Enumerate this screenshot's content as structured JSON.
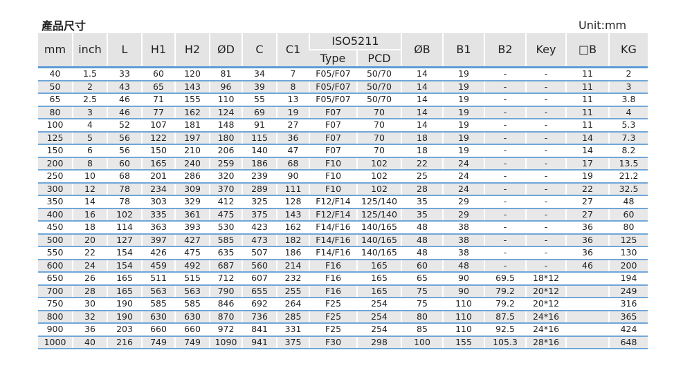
{
  "title": "產品尺寸",
  "unit": "Unit:mm",
  "colors": {
    "header_bg": "#e4e4e4",
    "row_alt_bg": "#e8e8e8",
    "row_line": "#6fa6d8"
  },
  "headers": {
    "mm": "mm",
    "inch": "inch",
    "L": "L",
    "H1": "H1",
    "H2": "H2",
    "D": "ØD",
    "C": "C",
    "C1": "C1",
    "iso": "ISO5211",
    "type": "Type",
    "pcd": "PCD",
    "B": "ØB",
    "B1": "B1",
    "B2": "B2",
    "key": "Key",
    "sqB": "□B",
    "KG": "KG"
  },
  "rows": [
    [
      "40",
      "1.5",
      "33",
      "60",
      "120",
      "81",
      "34",
      "7",
      "F05/F07",
      "50/70",
      "14",
      "19",
      "-",
      "-",
      "11",
      "2"
    ],
    [
      "50",
      "2",
      "43",
      "65",
      "143",
      "96",
      "39",
      "8",
      "F05/F07",
      "50/70",
      "14",
      "19",
      "-",
      "-",
      "11",
      "3"
    ],
    [
      "65",
      "2.5",
      "46",
      "71",
      "155",
      "110",
      "55",
      "13",
      "F05/F07",
      "50/70",
      "14",
      "19",
      "-",
      "-",
      "11",
      "3.8"
    ],
    [
      "80",
      "3",
      "46",
      "77",
      "162",
      "124",
      "69",
      "19",
      "F07",
      "70",
      "14",
      "19",
      "-",
      "-",
      "11",
      "4"
    ],
    [
      "100",
      "4",
      "52",
      "107",
      "181",
      "148",
      "91",
      "27",
      "F07",
      "70",
      "14",
      "19",
      "-",
      "-",
      "11",
      "5.3"
    ],
    [
      "125",
      "5",
      "56",
      "122",
      "197",
      "180",
      "115",
      "36",
      "F07",
      "70",
      "18",
      "19",
      "-",
      "-",
      "14",
      "7.3"
    ],
    [
      "150",
      "6",
      "56",
      "150",
      "210",
      "206",
      "140",
      "47",
      "F07",
      "70",
      "18",
      "19",
      "-",
      "-",
      "14",
      "8.2"
    ],
    [
      "200",
      "8",
      "60",
      "165",
      "240",
      "259",
      "186",
      "68",
      "F10",
      "102",
      "22",
      "24",
      "-",
      "-",
      "17",
      "13.5"
    ],
    [
      "250",
      "10",
      "68",
      "201",
      "286",
      "320",
      "239",
      "90",
      "F10",
      "102",
      "25",
      "24",
      "-",
      "-",
      "19",
      "21.2"
    ],
    [
      "300",
      "12",
      "78",
      "234",
      "309",
      "370",
      "289",
      "111",
      "F10",
      "102",
      "28",
      "24",
      "-",
      "-",
      "22",
      "32.5"
    ],
    [
      "350",
      "14",
      "78",
      "303",
      "329",
      "412",
      "325",
      "128",
      "F12/F14",
      "125/140",
      "35",
      "29",
      "-",
      "-",
      "27",
      "48"
    ],
    [
      "400",
      "16",
      "102",
      "335",
      "361",
      "475",
      "375",
      "143",
      "F12/F14",
      "125/140",
      "35",
      "29",
      "-",
      "-",
      "27",
      "60"
    ],
    [
      "450",
      "18",
      "114",
      "363",
      "393",
      "530",
      "423",
      "162",
      "F14/F16",
      "140/165",
      "48",
      "38",
      "-",
      "-",
      "36",
      "80"
    ],
    [
      "500",
      "20",
      "127",
      "397",
      "427",
      "585",
      "473",
      "182",
      "F14/F16",
      "140/165",
      "48",
      "38",
      "-",
      "-",
      "36",
      "125"
    ],
    [
      "550",
      "22",
      "154",
      "426",
      "475",
      "635",
      "507",
      "186",
      "F14/F16",
      "140/165",
      "48",
      "38",
      "-",
      "-",
      "36",
      "130"
    ],
    [
      "600",
      "24",
      "154",
      "459",
      "492",
      "687",
      "560",
      "214",
      "F16",
      "165",
      "60",
      "48",
      "-",
      "-",
      "46",
      "200"
    ],
    [
      "650",
      "26",
      "165",
      "511",
      "515",
      "712",
      "607",
      "232",
      "F16",
      "165",
      "65",
      "90",
      "69.5",
      "18*12",
      "",
      "194"
    ],
    [
      "700",
      "28",
      "165",
      "563",
      "563",
      "790",
      "655",
      "255",
      "F16",
      "165",
      "75",
      "90",
      "79.2",
      "20*12",
      "",
      "249"
    ],
    [
      "750",
      "30",
      "190",
      "585",
      "585",
      "846",
      "692",
      "264",
      "F25",
      "254",
      "75",
      "110",
      "79.2",
      "20*12",
      "",
      "316"
    ],
    [
      "800",
      "32",
      "190",
      "630",
      "630",
      "870",
      "736",
      "285",
      "F25",
      "254",
      "80",
      "110",
      "87.5",
      "24*16",
      "",
      "365"
    ],
    [
      "900",
      "36",
      "203",
      "660",
      "660",
      "972",
      "841",
      "331",
      "F25",
      "254",
      "85",
      "110",
      "92.5",
      "24*16",
      "",
      "424"
    ],
    [
      "1000",
      "40",
      "216",
      "749",
      "749",
      "1090",
      "941",
      "375",
      "F30",
      "298",
      "100",
      "155",
      "105.3",
      "28*16",
      "",
      "648"
    ]
  ]
}
